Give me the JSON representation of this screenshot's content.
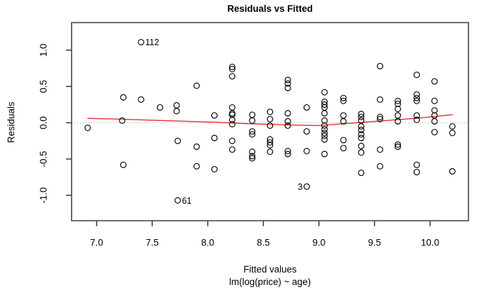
{
  "chart_data": {
    "type": "scatter",
    "title": "Residuals vs Fitted",
    "xlabel": "Fitted values",
    "xlabel2": "lm(log(price) ~ age)",
    "ylabel": "Residuals",
    "xlim": [
      6.775,
      10.345
    ],
    "ylim": [
      -1.35,
      1.38
    ],
    "grid": false,
    "x_ticks": {
      "values": [
        7.0,
        7.5,
        8.0,
        8.5,
        9.0,
        9.5,
        10.0
      ],
      "labels": [
        "7.0",
        "7.5",
        "8.0",
        "8.5",
        "9.0",
        "9.5",
        "10.0"
      ]
    },
    "y_ticks": {
      "values": [
        -1.0,
        -0.5,
        0.0,
        0.5,
        1.0
      ],
      "labels": [
        "-1.0",
        "-0.5",
        "0.0",
        "0.5",
        "1.0"
      ]
    },
    "zero_line_y": 0,
    "points": [
      [
        6.92,
        -0.07
      ],
      [
        7.24,
        0.35
      ],
      [
        7.23,
        0.03
      ],
      [
        7.24,
        -0.58
      ],
      [
        7.4,
        0.32
      ],
      [
        7.57,
        0.21
      ],
      [
        7.72,
        0.24
      ],
      [
        7.72,
        0.16
      ],
      [
        7.73,
        -0.25
      ],
      [
        7.9,
        0.51
      ],
      [
        7.9,
        -0.33
      ],
      [
        7.9,
        -0.6
      ],
      [
        8.06,
        0.1
      ],
      [
        8.06,
        -0.21
      ],
      [
        8.06,
        -0.64
      ],
      [
        8.22,
        0.77
      ],
      [
        8.22,
        0.74
      ],
      [
        8.22,
        0.64
      ],
      [
        8.22,
        0.21
      ],
      [
        8.22,
        0.13
      ],
      [
        8.22,
        0.11
      ],
      [
        8.22,
        0.04
      ],
      [
        8.22,
        -0.02
      ],
      [
        8.22,
        -0.25
      ],
      [
        8.22,
        -0.37
      ],
      [
        8.4,
        0.11
      ],
      [
        8.4,
        0.03
      ],
      [
        8.4,
        -0.12
      ],
      [
        8.4,
        -0.16
      ],
      [
        8.4,
        -0.4
      ],
      [
        8.4,
        -0.46
      ],
      [
        8.4,
        -0.49
      ],
      [
        8.56,
        0.15
      ],
      [
        8.56,
        0.05
      ],
      [
        8.56,
        -0.04
      ],
      [
        8.56,
        -0.23
      ],
      [
        8.56,
        -0.27
      ],
      [
        8.56,
        -0.31
      ],
      [
        8.56,
        -0.4
      ],
      [
        8.72,
        0.59
      ],
      [
        8.72,
        0.54
      ],
      [
        8.72,
        0.48
      ],
      [
        8.72,
        0.13
      ],
      [
        8.72,
        0.02
      ],
      [
        8.72,
        -0.04
      ],
      [
        8.72,
        -0.39
      ],
      [
        8.72,
        -0.43
      ],
      [
        8.89,
        0.21
      ],
      [
        8.89,
        -0.12
      ],
      [
        8.89,
        -0.39
      ],
      [
        9.05,
        0.42
      ],
      [
        9.05,
        0.29
      ],
      [
        9.05,
        0.25
      ],
      [
        9.05,
        0.21
      ],
      [
        9.05,
        0.13
      ],
      [
        9.05,
        0.03
      ],
      [
        9.05,
        -0.04
      ],
      [
        9.05,
        -0.09
      ],
      [
        9.05,
        -0.14
      ],
      [
        9.05,
        -0.18
      ],
      [
        9.05,
        -0.23
      ],
      [
        9.05,
        -0.43
      ],
      [
        9.22,
        0.34
      ],
      [
        9.22,
        0.3
      ],
      [
        9.22,
        0.1
      ],
      [
        9.22,
        0.02
      ],
      [
        9.22,
        -0.24
      ],
      [
        9.22,
        -0.35
      ],
      [
        9.38,
        0.12
      ],
      [
        9.38,
        0.08
      ],
      [
        9.38,
        0.03
      ],
      [
        9.38,
        -0.05
      ],
      [
        9.38,
        -0.1
      ],
      [
        9.38,
        -0.16
      ],
      [
        9.38,
        -0.21
      ],
      [
        9.38,
        -0.32
      ],
      [
        9.38,
        -0.41
      ],
      [
        9.38,
        -0.69
      ],
      [
        9.55,
        0.78
      ],
      [
        9.55,
        0.32
      ],
      [
        9.55,
        0.08
      ],
      [
        9.55,
        0.05
      ],
      [
        9.55,
        -0.37
      ],
      [
        9.55,
        -0.6
      ],
      [
        9.71,
        0.3
      ],
      [
        9.71,
        0.26
      ],
      [
        9.71,
        0.19
      ],
      [
        9.71,
        0.1
      ],
      [
        9.71,
        0.02
      ],
      [
        9.71,
        -0.3
      ],
      [
        9.71,
        -0.33
      ],
      [
        9.88,
        0.66
      ],
      [
        9.88,
        0.39
      ],
      [
        9.88,
        0.34
      ],
      [
        9.88,
        0.3
      ],
      [
        9.88,
        0.1
      ],
      [
        9.88,
        0.04
      ],
      [
        9.88,
        -0.58
      ],
      [
        9.88,
        -0.68
      ],
      [
        10.04,
        0.57
      ],
      [
        10.04,
        0.3
      ],
      [
        10.04,
        0.17
      ],
      [
        10.04,
        0.1
      ],
      [
        10.04,
        0.02
      ],
      [
        10.04,
        -0.13
      ],
      [
        10.2,
        -0.05
      ],
      [
        10.2,
        -0.14
      ],
      [
        10.2,
        -0.67
      ]
    ],
    "labeled_points": [
      {
        "label": "112",
        "x": 7.4,
        "y": 1.11,
        "side": "right"
      },
      {
        "label": "61",
        "x": 7.73,
        "y": -1.07,
        "side": "right"
      },
      {
        "label": "3",
        "x": 8.89,
        "y": -0.88,
        "side": "left"
      }
    ],
    "smoother": [
      [
        6.92,
        0.06
      ],
      [
        7.2,
        0.05
      ],
      [
        7.5,
        0.035
      ],
      [
        7.8,
        0.02
      ],
      [
        8.1,
        0.005
      ],
      [
        8.4,
        -0.015
      ],
      [
        8.7,
        -0.03
      ],
      [
        9.0,
        -0.038
      ],
      [
        9.3,
        -0.005
      ],
      [
        9.6,
        0.03
      ],
      [
        9.9,
        0.065
      ],
      [
        10.2,
        0.11
      ]
    ],
    "legend": null,
    "colors": {
      "point_stroke": "#000000",
      "smoother_line": "#e62e2e",
      "zero_line": "#b8b8b8",
      "box_stroke": "#434343",
      "text": "#000000"
    }
  }
}
